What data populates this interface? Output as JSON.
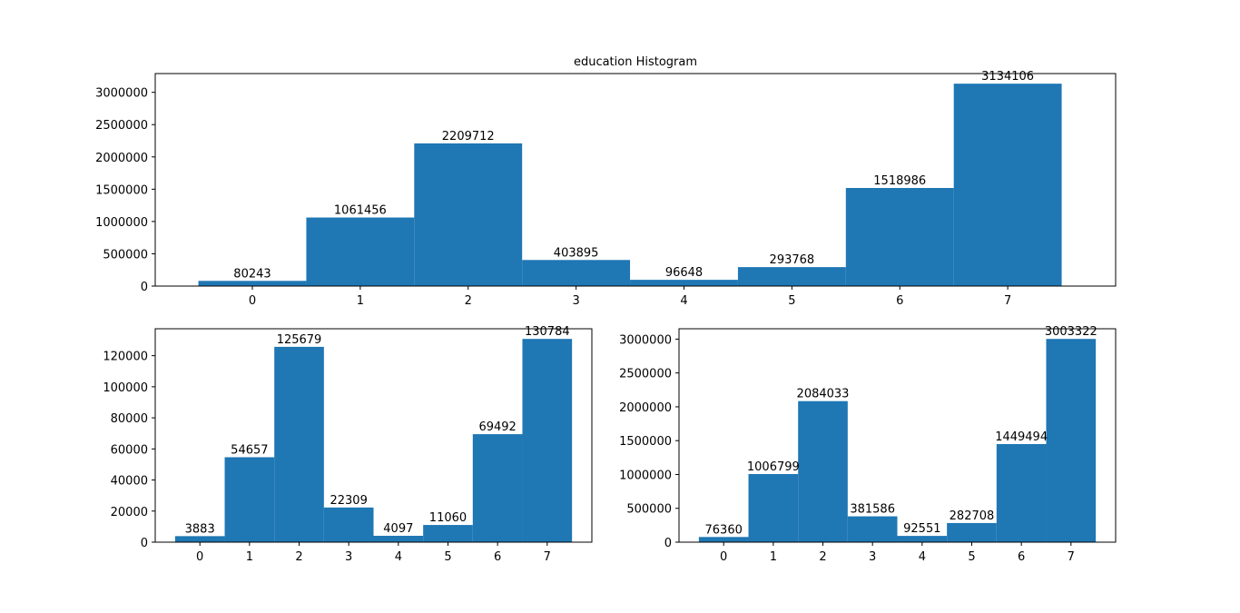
{
  "figure": {
    "colors": {
      "bar": "#1f77b4",
      "axes": "#000000",
      "background": "#ffffff"
    }
  },
  "chart_data": [
    {
      "type": "bar",
      "title": "education Histogram",
      "xlabel": "",
      "ylabel": "",
      "categories": [
        "0",
        "1",
        "2",
        "3",
        "4",
        "5",
        "6",
        "7"
      ],
      "values": [
        80243,
        1061456,
        2209712,
        403895,
        96648,
        293768,
        1518986,
        3134106
      ],
      "data_labels": [
        "80243",
        "1061456",
        "2209712",
        "403895",
        "96648",
        "293768",
        "1518986",
        "3134106"
      ],
      "xlim": [
        -0.9,
        8.0
      ],
      "ylim": [
        0,
        3290811
      ],
      "yticks": [
        0,
        500000,
        1000000,
        1500000,
        2000000,
        2500000,
        3000000
      ],
      "ytick_labels": [
        "0",
        "500000",
        "1000000",
        "1500000",
        "2000000",
        "2500000",
        "3000000"
      ],
      "grid": false,
      "legend": "none"
    },
    {
      "type": "bar",
      "title": "",
      "xlabel": "",
      "ylabel": "",
      "categories": [
        "0",
        "1",
        "2",
        "3",
        "4",
        "5",
        "6",
        "7"
      ],
      "values": [
        3883,
        54657,
        125679,
        22309,
        4097,
        11060,
        69492,
        130784
      ],
      "data_labels": [
        "3883",
        "54657",
        "125679",
        "22309",
        "4097",
        "11060",
        "69492",
        "130784"
      ],
      "xlim": [
        -0.9,
        7.9
      ],
      "ylim": [
        0,
        137323
      ],
      "yticks": [
        0,
        20000,
        40000,
        60000,
        80000,
        100000,
        120000
      ],
      "ytick_labels": [
        "0",
        "20000",
        "40000",
        "60000",
        "80000",
        "100000",
        "120000"
      ],
      "grid": false,
      "legend": "none"
    },
    {
      "type": "bar",
      "title": "",
      "xlabel": "",
      "ylabel": "",
      "categories": [
        "0",
        "1",
        "2",
        "3",
        "4",
        "5",
        "6",
        "7"
      ],
      "values": [
        76360,
        1006799,
        2084033,
        381586,
        92551,
        282708,
        1449494,
        3003322
      ],
      "data_labels": [
        "76360",
        "1006799",
        "2084033",
        "381586",
        "92551",
        "282708",
        "1449494",
        "3003322"
      ],
      "xlim": [
        -0.9,
        7.9
      ],
      "ylim": [
        0,
        3153488
      ],
      "yticks": [
        0,
        500000,
        1000000,
        1500000,
        2000000,
        2500000,
        3000000
      ],
      "ytick_labels": [
        "0",
        "500000",
        "1000000",
        "1500000",
        "2000000",
        "2500000",
        "3000000"
      ],
      "grid": false,
      "legend": "none"
    }
  ]
}
